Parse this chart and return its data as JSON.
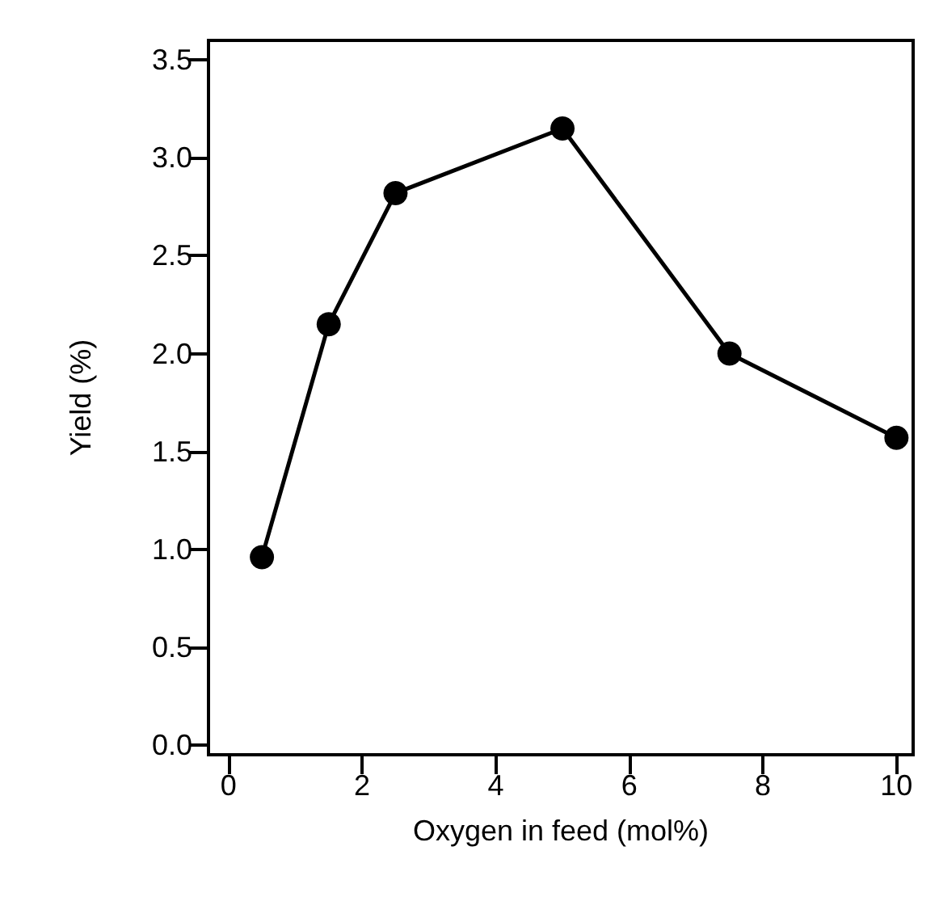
{
  "chart_data": {
    "type": "line",
    "xlabel": "Oxygen in feed (mol%)",
    "ylabel": "Yield (%)",
    "x": [
      0.5,
      1.5,
      2.5,
      5,
      7.5,
      10
    ],
    "series": [
      {
        "color": "#000000",
        "values": [
          0.96,
          2.15,
          2.82,
          3.15,
          2.0,
          1.57
        ]
      }
    ],
    "xlim": [
      -0.3,
      10.25
    ],
    "xticks": [
      0,
      2,
      4,
      6,
      8,
      10
    ],
    "ylim": [
      -0.05,
      3.6
    ],
    "yticks": [
      {
        "value": 0,
        "label": "0.0"
      },
      0.5,
      {
        "value": 1,
        "label": "1.0"
      },
      1.5,
      {
        "value": 2,
        "label": "2.0"
      },
      2.5,
      {
        "value": 3,
        "label": "3.0"
      },
      3.5
    ],
    "marker": "circle",
    "line_style": "solid"
  }
}
